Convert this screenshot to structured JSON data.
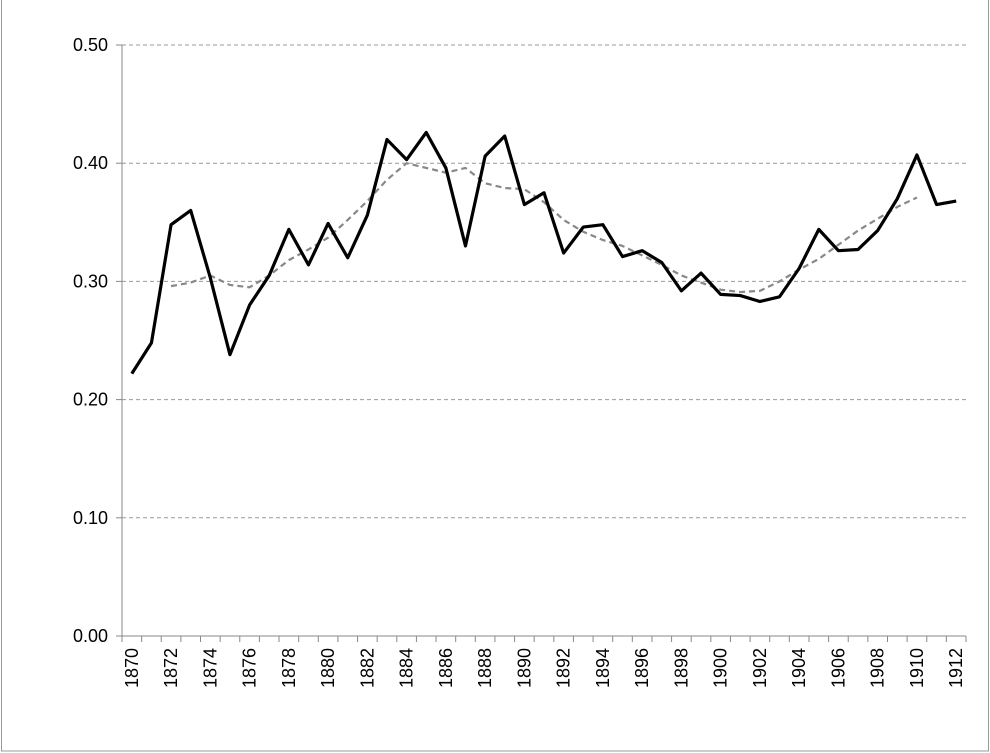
{
  "chart_data": {
    "type": "line",
    "categories": [
      "1870",
      null,
      "1872",
      null,
      "1874",
      null,
      "1876",
      null,
      "1878",
      null,
      "1880",
      null,
      "1882",
      null,
      "1884",
      null,
      "1886",
      null,
      "1888",
      null,
      "1890",
      null,
      "1892",
      null,
      "1894",
      null,
      "1896",
      null,
      "1898",
      null,
      "1900",
      null,
      "1902",
      null,
      "1904",
      null,
      "1906",
      null,
      "1908",
      null,
      "1910",
      null,
      "1912"
    ],
    "series": [
      {
        "color": "#000000",
        "dash": false,
        "values": [
          0.222,
          0.248,
          0.348,
          0.36,
          0.303,
          0.238,
          0.28,
          0.305,
          0.344,
          0.314,
          0.349,
          0.32,
          0.356,
          0.42,
          0.403,
          0.426,
          0.396,
          0.33,
          0.406,
          0.423,
          0.365,
          0.375,
          0.324,
          0.346,
          0.348,
          0.321,
          0.326,
          0.316,
          0.292,
          0.307,
          0.289,
          0.288,
          0.283,
          0.287,
          0.311,
          0.344,
          0.326,
          0.327,
          0.343,
          0.37,
          0.407,
          0.365,
          0.368
        ]
      },
      {
        "color": "#888888",
        "dash": true,
        "values": [
          null,
          null,
          0.296,
          0.299,
          0.305,
          0.297,
          0.295,
          0.305,
          0.318,
          0.327,
          0.337,
          0.352,
          0.368,
          0.386,
          0.4,
          0.396,
          0.392,
          0.396,
          0.383,
          0.379,
          0.378,
          0.367,
          0.352,
          0.342,
          0.335,
          0.33,
          0.322,
          0.314,
          0.305,
          0.299,
          0.293,
          0.291,
          0.292,
          0.3,
          0.31,
          0.319,
          0.331,
          0.343,
          0.353,
          0.363,
          0.371,
          null,
          null
        ]
      }
    ],
    "ylim": [
      0,
      0.5
    ],
    "yticks": [
      {
        "value": 0,
        "label": "0.00"
      },
      {
        "value": 0.1,
        "label": "0.10"
      },
      {
        "value": 0.2,
        "label": "0.20"
      },
      {
        "value": 0.3,
        "label": "0.30"
      },
      {
        "value": 0.4,
        "label": "0.40"
      },
      {
        "value": 0.5,
        "label": "0.50"
      }
    ],
    "grid": true
  }
}
